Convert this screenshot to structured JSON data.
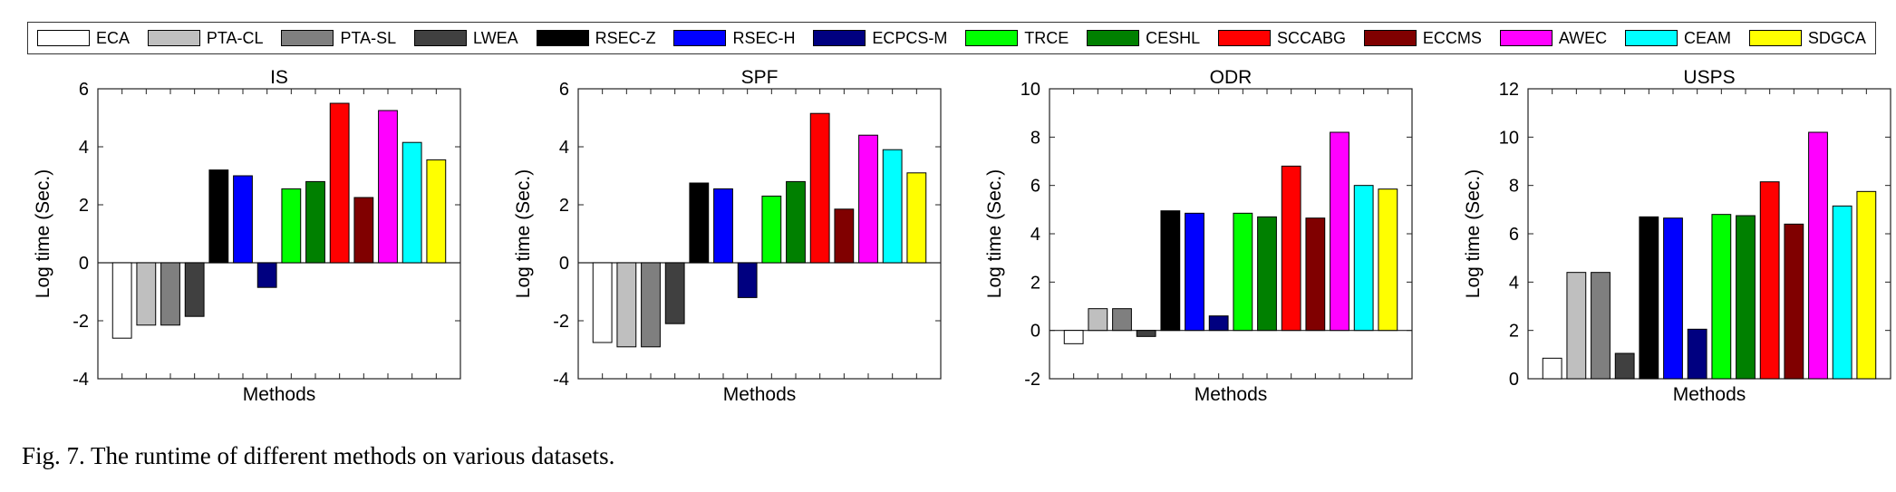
{
  "caption": "Fig. 7.  The runtime of different methods on various datasets.",
  "colors": {
    "ECA": "#ffffff",
    "PTA-CL": "#bfbfbf",
    "PTA-SL": "#7f7f7f",
    "LWEA": "#404040",
    "RSEC-Z": "#000000",
    "RSEC-H": "#0000ff",
    "ECPCS-M": "#000080",
    "TRCE": "#00ff00",
    "CESHL": "#008000",
    "SCCABG": "#ff0000",
    "ECCMS": "#800000",
    "AWEC": "#ff00ff",
    "CEAM": "#00ffff",
    "SDGCA": "#ffff00"
  },
  "chart_data": [
    {
      "type": "bar",
      "title": "IS",
      "xlabel": "Methods",
      "ylabel": "Log time (Sec.)",
      "ylim": [
        -4,
        6
      ],
      "yticks": [
        -4,
        -2,
        0,
        2,
        4,
        6
      ],
      "categories": [
        "ECA",
        "PTA-CL",
        "PTA-SL",
        "LWEA",
        "RSEC-Z",
        "RSEC-H",
        "ECPCS-M",
        "TRCE",
        "CESHL",
        "SCCABG",
        "ECCMS",
        "AWEC",
        "CEAM",
        "SDGCA"
      ],
      "values": [
        -2.6,
        -2.15,
        -2.15,
        -1.85,
        3.2,
        3.0,
        -0.85,
        2.55,
        2.8,
        5.5,
        2.25,
        5.25,
        4.15,
        3.55
      ]
    },
    {
      "type": "bar",
      "title": "SPF",
      "xlabel": "Methods",
      "ylabel": "Log time (Sec.)",
      "ylim": [
        -4,
        6
      ],
      "yticks": [
        -4,
        -2,
        0,
        2,
        4,
        6
      ],
      "categories": [
        "ECA",
        "PTA-CL",
        "PTA-SL",
        "LWEA",
        "RSEC-Z",
        "RSEC-H",
        "ECPCS-M",
        "TRCE",
        "CESHL",
        "SCCABG",
        "ECCMS",
        "AWEC",
        "CEAM",
        "SDGCA"
      ],
      "values": [
        -2.75,
        -2.9,
        -2.9,
        -2.1,
        2.75,
        2.55,
        -1.2,
        2.3,
        2.8,
        5.15,
        1.85,
        4.4,
        3.9,
        3.1
      ]
    },
    {
      "type": "bar",
      "title": "ODR",
      "xlabel": "Methods",
      "ylabel": "Log time (Sec.)",
      "ylim": [
        -2,
        10
      ],
      "yticks": [
        -2,
        0,
        2,
        4,
        6,
        8,
        10
      ],
      "categories": [
        "ECA",
        "PTA-CL",
        "PTA-SL",
        "LWEA",
        "RSEC-Z",
        "RSEC-H",
        "ECPCS-M",
        "TRCE",
        "CESHL",
        "SCCABG",
        "ECCMS",
        "AWEC",
        "CEAM",
        "SDGCA"
      ],
      "values": [
        -0.55,
        0.9,
        0.9,
        -0.25,
        4.95,
        4.85,
        0.6,
        4.85,
        4.7,
        6.8,
        4.65,
        8.2,
        6.0,
        5.85
      ]
    },
    {
      "type": "bar",
      "title": "USPS",
      "xlabel": "Methods",
      "ylabel": "Log time (Sec.)",
      "ylim": [
        0,
        12
      ],
      "yticks": [
        0,
        2,
        4,
        6,
        8,
        10,
        12
      ],
      "categories": [
        "ECA",
        "PTA-CL",
        "PTA-SL",
        "LWEA",
        "RSEC-Z",
        "RSEC-H",
        "ECPCS-M",
        "TRCE",
        "CESHL",
        "SCCABG",
        "ECCMS",
        "AWEC",
        "CEAM",
        "SDGCA"
      ],
      "values": [
        0.85,
        4.4,
        4.4,
        1.05,
        6.7,
        6.65,
        2.05,
        6.8,
        6.75,
        8.15,
        6.4,
        10.2,
        7.15,
        7.75
      ]
    }
  ]
}
